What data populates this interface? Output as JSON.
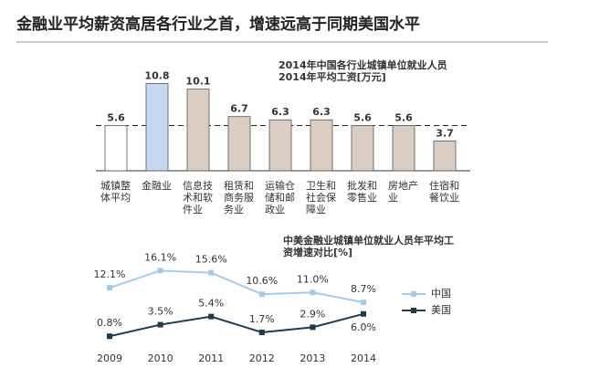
{
  "title": "金融业平均薪资高居各行业之首，增速远高于同期美国水平",
  "chart_data": [
    {
      "type": "bar",
      "title": "2014年中国各行业城镇单位就业人员2014年平均工资[万元]",
      "categories": [
        "城镇整体平均",
        "金融业",
        "信息技术和软件业",
        "租赁和商务服务业",
        "运输仓储和邮政业",
        "卫生和社会保障业",
        "批发和零售业",
        "房地产业",
        "住宿和餐饮业"
      ],
      "values": [
        5.6,
        10.8,
        10.1,
        6.7,
        6.3,
        6.3,
        5.6,
        5.6,
        3.7
      ],
      "colors": [
        "#ffffff",
        "#c6d9f1",
        "#dccdc2",
        "#dccdc2",
        "#dccdc2",
        "#dccdc2",
        "#dccdc2",
        "#dccdc2",
        "#dccdc2"
      ]
    },
    {
      "type": "line",
      "title": "中美金融业城镇单位就业人员年平均工资增速对比[%]",
      "categories": [
        "2009",
        "2010",
        "2011",
        "2012",
        "2013",
        "2014"
      ],
      "series": [
        {
          "name": "中国",
          "color": "#a6cbe8",
          "values": [
            12.1,
            16.1,
            15.6,
            10.6,
            11.0,
            8.7
          ],
          "value_labels": [
            "12.1%",
            "16.1%",
            "15.6%",
            "10.6%",
            "11.0%",
            "8.7%"
          ]
        },
        {
          "name": "美国",
          "color": "#1e3b4d",
          "values": [
            0.8,
            3.5,
            5.4,
            1.7,
            2.9,
            6.0
          ],
          "value_labels": [
            "0.8%",
            "3.5%",
            "5.4%",
            "1.7%",
            "2.9%",
            "6.0%"
          ]
        }
      ]
    }
  ]
}
